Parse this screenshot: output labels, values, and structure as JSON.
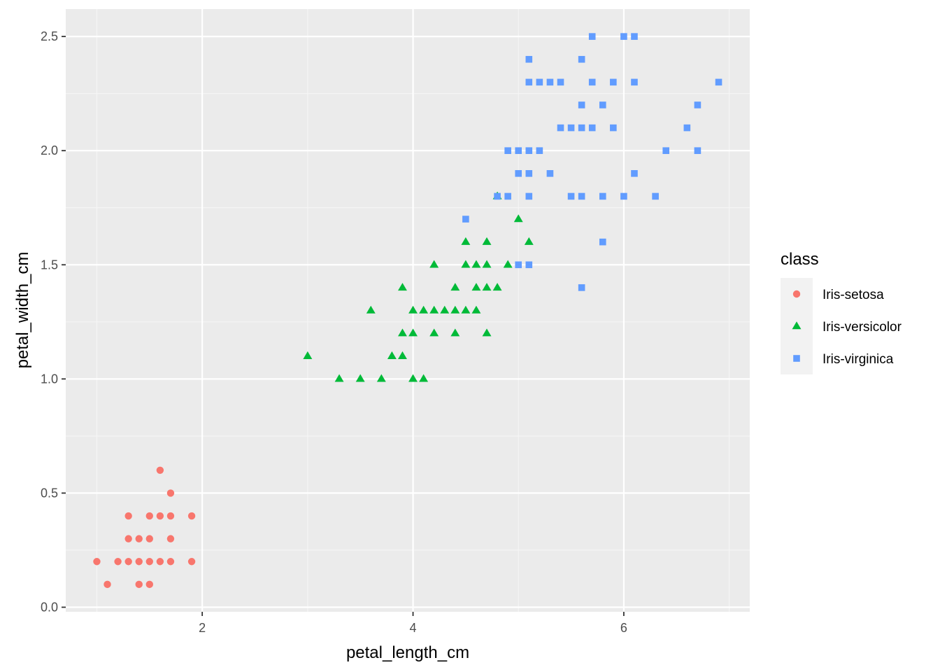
{
  "chart_data": {
    "type": "scatter",
    "xlabel": "petal_length_cm",
    "ylabel": "petal_width_cm",
    "xlim": [
      0.705,
      7.195
    ],
    "ylim": [
      -0.02,
      2.62
    ],
    "x_ticks": [
      2,
      4,
      6
    ],
    "x_tick_labels": [
      "2",
      "4",
      "6"
    ],
    "y_ticks": [
      0,
      0.5,
      1,
      1.5,
      2,
      2.5
    ],
    "y_tick_labels": [
      "0.0",
      "0.5",
      "1.0",
      "1.5",
      "2.0",
      "2.5"
    ],
    "grid": true,
    "legend": {
      "title": "class",
      "position": "right"
    },
    "series": [
      {
        "name": "Iris-setosa",
        "color": "#F8766D",
        "shape": "circle",
        "points": [
          [
            1.0,
            0.2
          ],
          [
            1.1,
            0.1
          ],
          [
            1.2,
            0.2
          ],
          [
            1.3,
            0.2
          ],
          [
            1.3,
            0.3
          ],
          [
            1.3,
            0.4
          ],
          [
            1.4,
            0.1
          ],
          [
            1.4,
            0.2
          ],
          [
            1.4,
            0.3
          ],
          [
            1.5,
            0.1
          ],
          [
            1.5,
            0.2
          ],
          [
            1.5,
            0.3
          ],
          [
            1.5,
            0.4
          ],
          [
            1.6,
            0.2
          ],
          [
            1.6,
            0.4
          ],
          [
            1.6,
            0.6
          ],
          [
            1.7,
            0.2
          ],
          [
            1.7,
            0.3
          ],
          [
            1.7,
            0.4
          ],
          [
            1.7,
            0.5
          ],
          [
            1.9,
            0.2
          ],
          [
            1.9,
            0.4
          ]
        ]
      },
      {
        "name": "Iris-versicolor",
        "color": "#00BA38",
        "shape": "triangle",
        "points": [
          [
            3.0,
            1.1
          ],
          [
            3.3,
            1.0
          ],
          [
            3.5,
            1.0
          ],
          [
            3.6,
            1.3
          ],
          [
            3.7,
            1.0
          ],
          [
            3.8,
            1.1
          ],
          [
            3.9,
            1.1
          ],
          [
            3.9,
            1.2
          ],
          [
            3.9,
            1.4
          ],
          [
            4.0,
            1.0
          ],
          [
            4.0,
            1.2
          ],
          [
            4.0,
            1.3
          ],
          [
            4.1,
            1.0
          ],
          [
            4.1,
            1.3
          ],
          [
            4.2,
            1.2
          ],
          [
            4.2,
            1.3
          ],
          [
            4.2,
            1.5
          ],
          [
            4.3,
            1.3
          ],
          [
            4.4,
            1.2
          ],
          [
            4.4,
            1.3
          ],
          [
            4.4,
            1.4
          ],
          [
            4.5,
            1.3
          ],
          [
            4.5,
            1.5
          ],
          [
            4.5,
            1.6
          ],
          [
            4.6,
            1.3
          ],
          [
            4.6,
            1.4
          ],
          [
            4.6,
            1.5
          ],
          [
            4.7,
            1.2
          ],
          [
            4.7,
            1.4
          ],
          [
            4.7,
            1.5
          ],
          [
            4.7,
            1.6
          ],
          [
            4.8,
            1.4
          ],
          [
            4.8,
            1.8
          ],
          [
            4.9,
            1.5
          ],
          [
            5.0,
            1.7
          ],
          [
            5.1,
            1.6
          ]
        ]
      },
      {
        "name": "Iris-virginica",
        "color": "#619CFF",
        "shape": "square",
        "points": [
          [
            4.5,
            1.7
          ],
          [
            4.8,
            1.8
          ],
          [
            4.9,
            1.8
          ],
          [
            4.9,
            2.0
          ],
          [
            5.0,
            1.5
          ],
          [
            5.0,
            1.9
          ],
          [
            5.0,
            2.0
          ],
          [
            5.1,
            1.5
          ],
          [
            5.1,
            1.8
          ],
          [
            5.1,
            1.9
          ],
          [
            5.1,
            2.0
          ],
          [
            5.1,
            2.3
          ],
          [
            5.1,
            2.4
          ],
          [
            5.2,
            2.0
          ],
          [
            5.2,
            2.3
          ],
          [
            5.3,
            1.9
          ],
          [
            5.3,
            2.3
          ],
          [
            5.4,
            2.1
          ],
          [
            5.4,
            2.3
          ],
          [
            5.5,
            1.8
          ],
          [
            5.5,
            2.1
          ],
          [
            5.6,
            1.4
          ],
          [
            5.6,
            1.8
          ],
          [
            5.6,
            2.1
          ],
          [
            5.6,
            2.2
          ],
          [
            5.6,
            2.4
          ],
          [
            5.7,
            2.1
          ],
          [
            5.7,
            2.3
          ],
          [
            5.7,
            2.5
          ],
          [
            5.8,
            1.6
          ],
          [
            5.8,
            1.8
          ],
          [
            5.8,
            2.2
          ],
          [
            5.9,
            2.1
          ],
          [
            5.9,
            2.3
          ],
          [
            6.0,
            1.8
          ],
          [
            6.0,
            2.5
          ],
          [
            6.1,
            1.9
          ],
          [
            6.1,
            2.3
          ],
          [
            6.1,
            2.5
          ],
          [
            6.3,
            1.8
          ],
          [
            6.4,
            2.0
          ],
          [
            6.6,
            2.1
          ],
          [
            6.7,
            2.0
          ],
          [
            6.7,
            2.2
          ],
          [
            6.9,
            2.3
          ]
        ]
      }
    ]
  }
}
